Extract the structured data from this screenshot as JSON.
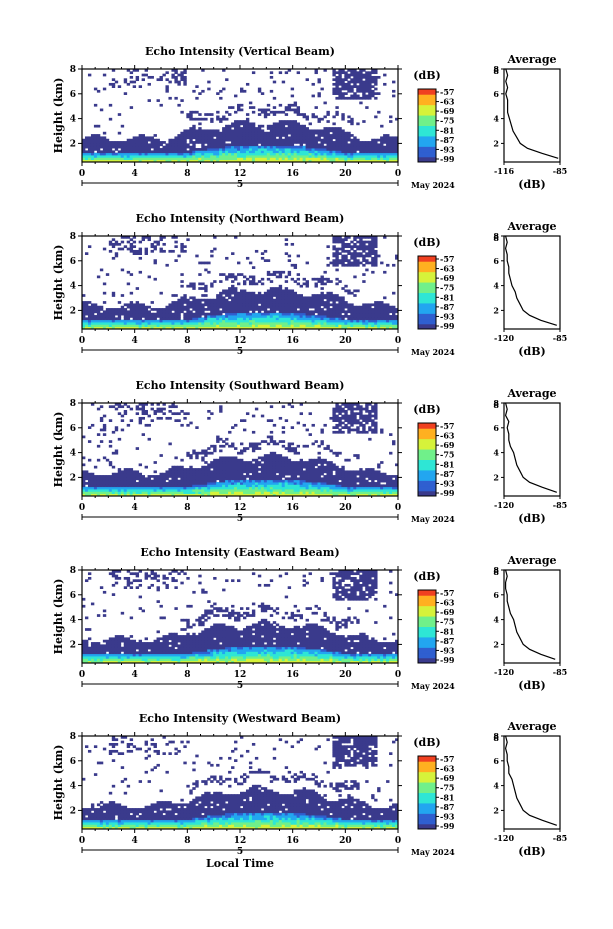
{
  "figure": {
    "panel_titles": [
      "Echo Intensity (Vertical Beam)",
      "Echo Intensity (Northward Beam)",
      "Echo Intensity (Southward Beam)",
      "Echo Intensity (Eastward Beam)",
      "Echo Intensity (Westward Beam)"
    ],
    "ylabel": "Height (km)",
    "xlabel": "Local Time",
    "date_label": "May 2024",
    "day_label": "5",
    "colorbar_unit": "(dB)",
    "colorbar_ticks": [
      "-57",
      "-63",
      "-69",
      "-75",
      "-81",
      "-87",
      "-93",
      "-99"
    ],
    "average_title": "Average",
    "average_xlabel": "(dB)",
    "average_xticks": [
      [
        "-116",
        "-85"
      ],
      [
        "-120",
        "-85"
      ],
      [
        "-120",
        "-85"
      ],
      [
        "-120",
        "-85"
      ],
      [
        "-120",
        "-85"
      ]
    ]
  },
  "chart_data": [
    {
      "type": "heatmap",
      "title": "Echo Intensity (Vertical Beam)",
      "xlabel": "",
      "ylabel": "Height (km)",
      "x_ticks": [
        "0",
        "4",
        "8",
        "12",
        "16",
        "20",
        "0"
      ],
      "x_range_hours": [
        0,
        24
      ],
      "y_ticks": [
        "2",
        "4",
        "6",
        "8"
      ],
      "ylim_km": [
        0.5,
        8.0
      ],
      "zlabel": "(dB)",
      "z_range_db": [
        -99,
        -57
      ],
      "colormap": [
        "#3a3a8c",
        "#2f5fd0",
        "#22a6f0",
        "#2ee6d5",
        "#70f08a",
        "#d6f23a",
        "#ffb020",
        "#f04020"
      ],
      "average_profile": {
        "title": "Average",
        "xlabel": "(dB)",
        "xlim": [
          -116,
          -85
        ],
        "height_km": [
          0.8,
          1.2,
          1.6,
          2,
          2.5,
          3,
          3.5,
          4,
          4.5,
          5,
          5.5,
          6,
          6.5,
          7,
          7.5,
          8
        ],
        "db": [
          -86,
          -95,
          -103,
          -107,
          -109,
          -111,
          -112,
          -113,
          -114,
          -114,
          -114,
          -115,
          -114,
          -115,
          -114,
          -115
        ]
      }
    },
    {
      "type": "heatmap",
      "title": "Echo Intensity (Northward Beam)",
      "xlabel": "",
      "ylabel": "Height (km)",
      "x_ticks": [
        "0",
        "4",
        "8",
        "12",
        "16",
        "20",
        "0"
      ],
      "x_range_hours": [
        0,
        24
      ],
      "y_ticks": [
        "2",
        "4",
        "6",
        "8"
      ],
      "ylim_km": [
        0.5,
        8.0
      ],
      "zlabel": "(dB)",
      "z_range_db": [
        -99,
        -57
      ],
      "colormap": [
        "#3a3a8c",
        "#2f5fd0",
        "#22a6f0",
        "#2ee6d5",
        "#70f08a",
        "#d6f23a",
        "#ffb020",
        "#f04020"
      ],
      "average_profile": {
        "title": "Average",
        "xlabel": "(dB)",
        "xlim": [
          -120,
          -85
        ],
        "height_km": [
          0.8,
          1.2,
          1.6,
          2,
          2.5,
          3,
          3.5,
          4,
          4.5,
          5,
          5.5,
          6,
          6.5,
          7,
          7.5,
          8
        ],
        "db": [
          -87,
          -97,
          -104,
          -108,
          -110,
          -112,
          -113,
          -115,
          -116,
          -117,
          -117,
          -118,
          -118,
          -119,
          -118,
          -119
        ]
      }
    },
    {
      "type": "heatmap",
      "title": "Echo Intensity (Southward Beam)",
      "xlabel": "",
      "ylabel": "Height (km)",
      "x_ticks": [
        "0",
        "4",
        "8",
        "12",
        "16",
        "20",
        "0"
      ],
      "x_range_hours": [
        0,
        24
      ],
      "y_ticks": [
        "2",
        "4",
        "6",
        "8"
      ],
      "ylim_km": [
        0.5,
        8.0
      ],
      "zlabel": "(dB)",
      "z_range_db": [
        -99,
        -57
      ],
      "colormap": [
        "#3a3a8c",
        "#2f5fd0",
        "#22a6f0",
        "#2ee6d5",
        "#70f08a",
        "#d6f23a",
        "#ffb020",
        "#f04020"
      ],
      "average_profile": {
        "title": "Average",
        "xlabel": "(dB)",
        "xlim": [
          -120,
          -85
        ],
        "height_km": [
          0.8,
          1.2,
          1.6,
          2,
          2.5,
          3,
          3.5,
          4,
          4.5,
          5,
          5.5,
          6,
          6.5,
          7,
          7.5,
          8
        ],
        "db": [
          -87,
          -96,
          -104,
          -108,
          -110,
          -112,
          -113,
          -114,
          -116,
          -117,
          -117,
          -118,
          -117,
          -119,
          -118,
          -119
        ]
      }
    },
    {
      "type": "heatmap",
      "title": "Echo Intensity (Eastward Beam)",
      "xlabel": "",
      "ylabel": "Height (km)",
      "x_ticks": [
        "0",
        "4",
        "8",
        "12",
        "16",
        "20",
        "0"
      ],
      "x_range_hours": [
        0,
        24
      ],
      "y_ticks": [
        "2",
        "4",
        "6",
        "8"
      ],
      "ylim_km": [
        0.5,
        8.0
      ],
      "zlabel": "(dB)",
      "z_range_db": [
        -99,
        -57
      ],
      "colormap": [
        "#3a3a8c",
        "#2f5fd0",
        "#22a6f0",
        "#2ee6d5",
        "#70f08a",
        "#d6f23a",
        "#ffb020",
        "#f04020"
      ],
      "average_profile": {
        "title": "Average",
        "xlabel": "(dB)",
        "xlim": [
          -120,
          -85
        ],
        "height_km": [
          0.8,
          1.2,
          1.6,
          2,
          2.5,
          3,
          3.5,
          4,
          4.5,
          5,
          5.5,
          6,
          6.5,
          7,
          7.5,
          8
        ],
        "db": [
          -88,
          -97,
          -104,
          -108,
          -110,
          -112,
          -113,
          -114,
          -116,
          -117,
          -118,
          -118,
          -119,
          -119,
          -118,
          -119
        ]
      }
    },
    {
      "type": "heatmap",
      "title": "Echo Intensity (Westward Beam)",
      "xlabel": "Local Time",
      "ylabel": "Height (km)",
      "x_ticks": [
        "0",
        "4",
        "8",
        "12",
        "16",
        "20",
        "0"
      ],
      "x_range_hours": [
        0,
        24
      ],
      "y_ticks": [
        "2",
        "4",
        "6",
        "8"
      ],
      "ylim_km": [
        0.5,
        8.0
      ],
      "zlabel": "(dB)",
      "z_range_db": [
        -99,
        -57
      ],
      "colormap": [
        "#3a3a8c",
        "#2f5fd0",
        "#22a6f0",
        "#2ee6d5",
        "#70f08a",
        "#d6f23a",
        "#ffb020",
        "#f04020"
      ],
      "average_profile": {
        "title": "Average",
        "xlabel": "(dB)",
        "xlim": [
          -120,
          -85
        ],
        "height_km": [
          0.8,
          1.2,
          1.6,
          2,
          2.5,
          3,
          3.5,
          4,
          4.5,
          5,
          5.5,
          6,
          6.5,
          7,
          7.5,
          8
        ],
        "db": [
          -87,
          -96,
          -104,
          -108,
          -110,
          -112,
          -113,
          -114,
          -115,
          -117,
          -117,
          -118,
          -118,
          -119,
          -118,
          -119
        ]
      }
    }
  ]
}
